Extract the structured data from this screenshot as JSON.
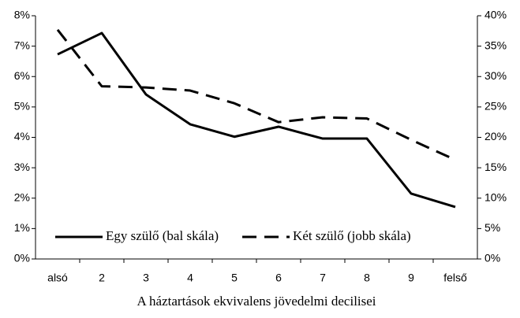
{
  "chart_data": {
    "type": "line",
    "x_label": "A háztartások ekvivalens jövedelmi decilisei",
    "categories": [
      "alsó",
      "2",
      "3",
      "4",
      "5",
      "6",
      "7",
      "8",
      "9",
      "felső"
    ],
    "series": [
      {
        "name": "Egy szülő (bal skála)",
        "color": "#000000",
        "style": "solid",
        "axis": "y",
        "values": [
          6.73,
          7.43,
          5.41,
          4.43,
          4.02,
          4.35,
          3.96,
          3.96,
          2.15,
          1.71
        ]
      },
      {
        "name": "Két szülő (jobb skála)",
        "color": "#000000",
        "style": "dashed",
        "axis": "y2",
        "values": [
          37.7,
          28.4,
          28.2,
          27.7,
          25.6,
          22.5,
          23.3,
          23.1,
          19.6,
          16.3
        ]
      }
    ],
    "ylim": [
      0,
      8
    ],
    "yticks": [
      {
        "value": 0,
        "label": "0%"
      },
      {
        "value": 1,
        "label": "1%"
      },
      {
        "value": 2,
        "label": "2%"
      },
      {
        "value": 3,
        "label": "3%"
      },
      {
        "value": 4,
        "label": "4%"
      },
      {
        "value": 5,
        "label": "5%"
      },
      {
        "value": 6,
        "label": "6%"
      },
      {
        "value": 7,
        "label": "7%"
      },
      {
        "value": 8,
        "label": "8%"
      }
    ],
    "y2lim": [
      0,
      40
    ],
    "y2ticks": [
      {
        "value": 0,
        "label": "0%"
      },
      {
        "value": 5,
        "label": "5%"
      },
      {
        "value": 10,
        "label": "10%"
      },
      {
        "value": 15,
        "label": "15%"
      },
      {
        "value": 20,
        "label": "20%"
      },
      {
        "value": 25,
        "label": "25%"
      },
      {
        "value": 30,
        "label": "30%"
      },
      {
        "value": 35,
        "label": "35%"
      },
      {
        "value": 40,
        "label": "40%"
      }
    ],
    "grid": false,
    "legend": "lower left"
  }
}
